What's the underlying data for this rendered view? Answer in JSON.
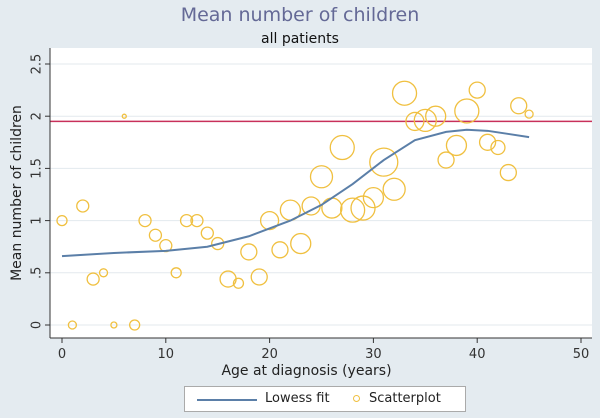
{
  "chart_data": {
    "type": "scatter",
    "title": "Mean number of children",
    "subtitle": "all patients",
    "xlabel": "Age at diagnosis (years)",
    "ylabel": "Mean number of children",
    "xlim": [
      0,
      50
    ],
    "ylim": [
      0,
      2.5
    ],
    "x_ticks": [
      0,
      10,
      20,
      30,
      40,
      50
    ],
    "y_ticks": [
      0,
      0.5,
      1,
      1.5,
      2,
      2.5
    ],
    "y_tick_labels": [
      "0",
      ".5",
      "1",
      "1.5",
      "2",
      "2.5"
    ],
    "reference_line": {
      "y": 1.95,
      "color": "#c8305a"
    },
    "series": [
      {
        "name": "Lowess fit",
        "kind": "line",
        "color": "#5b7fa8",
        "points": [
          [
            0,
            0.66
          ],
          [
            5,
            0.69
          ],
          [
            10,
            0.71
          ],
          [
            14,
            0.75
          ],
          [
            18,
            0.85
          ],
          [
            22,
            1.0
          ],
          [
            25,
            1.15
          ],
          [
            28,
            1.35
          ],
          [
            31,
            1.58
          ],
          [
            34,
            1.77
          ],
          [
            37,
            1.85
          ],
          [
            39,
            1.87
          ],
          [
            41,
            1.86
          ],
          [
            43,
            1.83
          ],
          [
            45,
            1.8
          ]
        ]
      },
      {
        "name": "Scatterplot",
        "kind": "scatter",
        "color": "#f0c040",
        "points": [
          {
            "x": 0,
            "y": 1.0,
            "r": 5
          },
          {
            "x": 1,
            "y": 0.0,
            "r": 4
          },
          {
            "x": 2,
            "y": 1.14,
            "r": 6
          },
          {
            "x": 3,
            "y": 0.44,
            "r": 6
          },
          {
            "x": 4,
            "y": 0.5,
            "r": 4
          },
          {
            "x": 5,
            "y": 0.0,
            "r": 3
          },
          {
            "x": 6,
            "y": 2.0,
            "r": 2
          },
          {
            "x": 7,
            "y": 0.0,
            "r": 5
          },
          {
            "x": 8,
            "y": 1.0,
            "r": 6
          },
          {
            "x": 9,
            "y": 0.86,
            "r": 6
          },
          {
            "x": 10,
            "y": 0.76,
            "r": 6
          },
          {
            "x": 11,
            "y": 0.5,
            "r": 5
          },
          {
            "x": 12,
            "y": 1.0,
            "r": 6
          },
          {
            "x": 13,
            "y": 1.0,
            "r": 6
          },
          {
            "x": 14,
            "y": 0.88,
            "r": 6
          },
          {
            "x": 15,
            "y": 0.78,
            "r": 6
          },
          {
            "x": 16,
            "y": 0.44,
            "r": 8
          },
          {
            "x": 17,
            "y": 0.4,
            "r": 5
          },
          {
            "x": 18,
            "y": 0.7,
            "r": 8
          },
          {
            "x": 19,
            "y": 0.46,
            "r": 8
          },
          {
            "x": 20,
            "y": 1.0,
            "r": 9
          },
          {
            "x": 21,
            "y": 0.72,
            "r": 8
          },
          {
            "x": 22,
            "y": 1.1,
            "r": 10
          },
          {
            "x": 23,
            "y": 0.78,
            "r": 10
          },
          {
            "x": 24,
            "y": 1.14,
            "r": 9
          },
          {
            "x": 25,
            "y": 1.42,
            "r": 11
          },
          {
            "x": 26,
            "y": 1.12,
            "r": 10
          },
          {
            "x": 27,
            "y": 1.7,
            "r": 12
          },
          {
            "x": 28,
            "y": 1.1,
            "r": 12
          },
          {
            "x": 29,
            "y": 1.12,
            "r": 12
          },
          {
            "x": 30,
            "y": 1.22,
            "r": 10
          },
          {
            "x": 31,
            "y": 1.56,
            "r": 14
          },
          {
            "x": 32,
            "y": 1.3,
            "r": 11
          },
          {
            "x": 33,
            "y": 2.22,
            "r": 12
          },
          {
            "x": 34,
            "y": 1.95,
            "r": 9
          },
          {
            "x": 35,
            "y": 1.96,
            "r": 11
          },
          {
            "x": 36,
            "y": 2.0,
            "r": 10
          },
          {
            "x": 37,
            "y": 1.58,
            "r": 8
          },
          {
            "x": 38,
            "y": 1.72,
            "r": 10
          },
          {
            "x": 39,
            "y": 2.05,
            "r": 12
          },
          {
            "x": 40,
            "y": 2.25,
            "r": 8
          },
          {
            "x": 41,
            "y": 1.75,
            "r": 8
          },
          {
            "x": 42,
            "y": 1.7,
            "r": 7
          },
          {
            "x": 43,
            "y": 1.46,
            "r": 8
          },
          {
            "x": 44,
            "y": 2.1,
            "r": 8
          },
          {
            "x": 45,
            "y": 2.02,
            "r": 4
          }
        ]
      }
    ],
    "legend": {
      "position": "bottom",
      "items": [
        "Lowess fit",
        "Scatterplot"
      ]
    },
    "grid": {
      "horizontal": true,
      "vertical": false
    }
  },
  "colors": {
    "background": "#e4ebf0",
    "plot_background": "#ffffff",
    "title": "#646996"
  }
}
